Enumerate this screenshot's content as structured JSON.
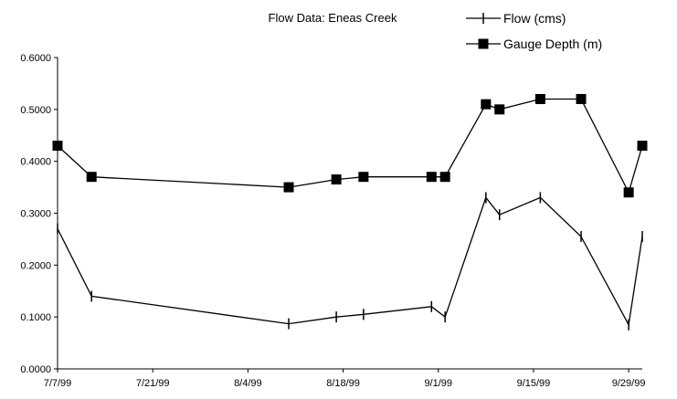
{
  "chart_data": {
    "type": "line",
    "title": "Flow Data: Eneas Creek",
    "xlabel": "",
    "ylabel": "",
    "x_tick_labels": [
      "7/7/99",
      "7/21/99",
      "8/4/99",
      "8/18/99",
      "9/1/99",
      "9/15/99",
      "9/29/99"
    ],
    "x_range": [
      "7/7/99",
      "10/1/99"
    ],
    "y_tick_labels": [
      "0.0000",
      "0.1000",
      "0.2000",
      "0.3000",
      "0.4000",
      "0.5000",
      "0.6000"
    ],
    "ylim": [
      0,
      0.6
    ],
    "grid": false,
    "legend_position": "top-right",
    "line_color": "#000000",
    "series": [
      {
        "name": "Flow (cms)",
        "marker": "vertical-tick",
        "points": [
          {
            "x": "7/7/99",
            "y": 0.27
          },
          {
            "x": "7/12/99",
            "y": 0.14
          },
          {
            "x": "8/10/99",
            "y": 0.087
          },
          {
            "x": "8/17/99",
            "y": 0.1
          },
          {
            "x": "8/21/99",
            "y": 0.105
          },
          {
            "x": "8/31/99",
            "y": 0.12
          },
          {
            "x": "9/2/99",
            "y": 0.1
          },
          {
            "x": "9/8/99",
            "y": 0.33
          },
          {
            "x": "9/10/99",
            "y": 0.297
          },
          {
            "x": "9/16/99",
            "y": 0.33
          },
          {
            "x": "9/22/99",
            "y": 0.255
          },
          {
            "x": "9/29/99",
            "y": 0.085
          },
          {
            "x": "10/1/99",
            "y": 0.255
          }
        ]
      },
      {
        "name": "Gauge Depth (m)",
        "marker": "square",
        "points": [
          {
            "x": "7/7/99",
            "y": 0.43
          },
          {
            "x": "7/12/99",
            "y": 0.37
          },
          {
            "x": "8/10/99",
            "y": 0.35
          },
          {
            "x": "8/17/99",
            "y": 0.365
          },
          {
            "x": "8/21/99",
            "y": 0.37
          },
          {
            "x": "8/31/99",
            "y": 0.37
          },
          {
            "x": "9/2/99",
            "y": 0.37
          },
          {
            "x": "9/8/99",
            "y": 0.51
          },
          {
            "x": "9/10/99",
            "y": 0.5
          },
          {
            "x": "9/16/99",
            "y": 0.52
          },
          {
            "x": "9/22/99",
            "y": 0.52
          },
          {
            "x": "9/29/99",
            "y": 0.34
          },
          {
            "x": "10/1/99",
            "y": 0.43
          }
        ]
      }
    ]
  }
}
